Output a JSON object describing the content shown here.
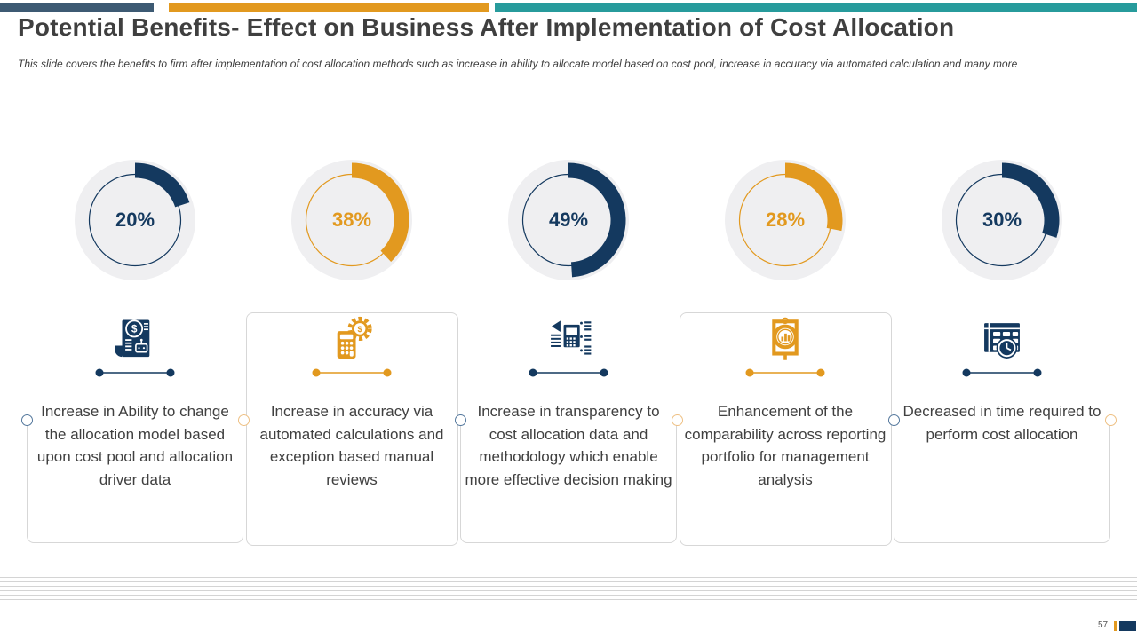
{
  "header": {
    "title": "Potential Benefits- Effect on Business After Implementation of Cost Allocation",
    "subtitle": "This slide covers the benefits to firm after implementation of cost allocation methods such as increase in ability to allocate model based on cost pool, increase in accuracy via automated calculation and many more"
  },
  "colors": {
    "navy": "#14395f",
    "orange": "#e2991f",
    "slate": "#3d5a73",
    "teal": "#279b9c",
    "donut_bg": "#efeff1",
    "card_border": "#d7d7d7"
  },
  "cards": [
    {
      "percent": 20,
      "percent_label": "20%",
      "accent": "navy",
      "icon": "scroll-dollar-robot-icon",
      "description": "Increase in Ability to change the allocation model based upon cost pool and allocation driver data",
      "boxed": false
    },
    {
      "percent": 38,
      "percent_label": "38%",
      "accent": "orange",
      "icon": "calculator-gear-dollar-icon",
      "description": "Increase in accuracy via automated calculations and exception based manual reviews",
      "boxed": true
    },
    {
      "percent": 49,
      "percent_label": "49%",
      "accent": "navy",
      "icon": "data-transparency-icon",
      "description": "Increase in transparency to cost allocation data and methodology which enable more effective decision making",
      "boxed": false
    },
    {
      "percent": 28,
      "percent_label": "28%",
      "accent": "orange",
      "icon": "magnifier-report-icon",
      "description": "Enhancement of the comparability across reporting portfolio for management analysis",
      "boxed": true
    },
    {
      "percent": 30,
      "percent_label": "30%",
      "accent": "navy",
      "icon": "calendar-clock-icon",
      "description": "Decreased in time required to perform cost allocation",
      "boxed": false
    }
  ],
  "divider_dots": [
    "navy",
    "orange",
    "navy",
    "orange",
    "navy",
    "orange"
  ],
  "footer": {
    "page_number": "57"
  },
  "chart_data": {
    "type": "pie",
    "variant": "donut-gauge-row",
    "gauges": [
      {
        "label": "Increase in Ability to change the allocation model based upon cost pool and allocation driver data",
        "value": 20,
        "color": "#14395f"
      },
      {
        "label": "Increase in accuracy via automated calculations and exception based manual reviews",
        "value": 38,
        "color": "#e2991f"
      },
      {
        "label": "Increase in transparency to cost allocation data and methodology which enable more effective decision making",
        "value": 49,
        "color": "#14395f"
      },
      {
        "label": "Enhancement of the comparability across reporting portfolio for management analysis",
        "value": 28,
        "color": "#e2991f"
      },
      {
        "label": "Decreased in time required to perform cost allocation",
        "value": 30,
        "color": "#14395f"
      }
    ],
    "value_range": [
      0,
      100
    ],
    "start_angle": "top",
    "direction": "clockwise"
  }
}
